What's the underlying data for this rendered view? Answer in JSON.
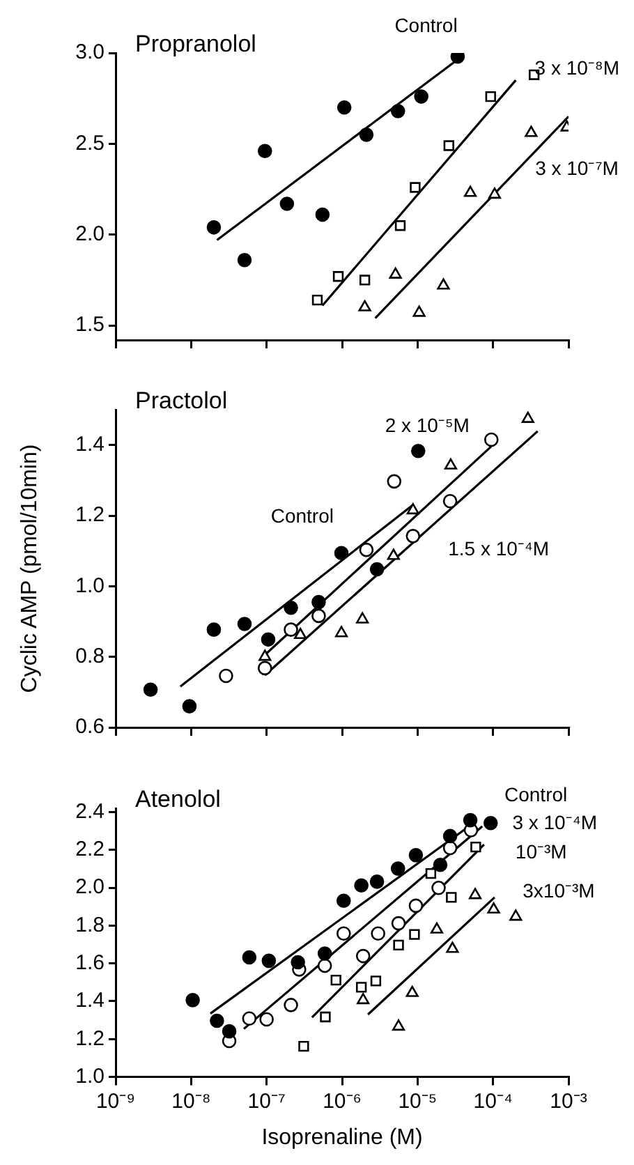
{
  "chart_data": [
    {
      "type": "scatter",
      "title": "Propranolol",
      "log": "x",
      "grid": false,
      "legend": false,
      "tick_labels": "y",
      "xlim": [
        1e-09,
        0.001
      ],
      "xticks": [
        {
          "value": 1e-09,
          "label": null
        },
        {
          "value": 1e-08,
          "label": null
        },
        {
          "value": 1e-07,
          "label": null
        },
        {
          "value": 1e-06,
          "label": null
        },
        {
          "value": 1e-05,
          "label": null
        },
        {
          "value": 0.0001,
          "label": null
        },
        {
          "value": 0.001,
          "label": null
        }
      ],
      "ylim": [
        1.42,
        3.0
      ],
      "yticks": [
        {
          "value": 1.5,
          "label": "1.5"
        },
        {
          "value": 2,
          "label": "2.0"
        },
        {
          "value": 2.5,
          "label": "2.5"
        },
        {
          "value": 3,
          "label": "3.0"
        }
      ],
      "series": [
        {
          "color": "#000000",
          "marker": "circle",
          "x": [
            2e-08,
            5.1e-08,
            9.5e-08,
            1.86e-07,
            5.5e-07,
            1.07e-06,
            2.1e-06,
            5.5e-06,
            1.12e-05,
            3.4e-05
          ],
          "values": [
            2.04,
            1.86,
            2.46,
            2.17,
            2.11,
            2.7,
            2.55,
            2.68,
            2.76,
            2.98
          ]
        },
        {
          "color": "#000000",
          "marker": "square",
          "x": [
            4.7e-07,
            8.9e-07,
            2e-06,
            5.9e-06,
            9.3e-06,
            2.6e-05,
            9.3e-05,
            0.00035
          ],
          "values": [
            1.64,
            1.77,
            1.75,
            2.05,
            2.26,
            2.49,
            2.76,
            2.88
          ]
        },
        {
          "color": "#000000",
          "marker": "triangle",
          "x": [
            2e-06,
            5.1e-06,
            1.05e-05,
            2.2e-05,
            5e-05,
            0.000105,
            0.00032,
            0.00095
          ],
          "values": [
            1.6,
            1.78,
            1.57,
            1.72,
            2.23,
            2.22,
            2.56,
            2.59
          ]
        },
        {
          "type": "line",
          "name": "Control",
          "color": "#000000",
          "marker": "none",
          "x": [
            2.2e-08,
            3.3e-05
          ],
          "values": [
            1.97,
            2.96
          ]
        },
        {
          "type": "line",
          "name": "3 x 10⁻⁸M",
          "color": "#000000",
          "marker": "none",
          "x": [
            5.5e-07,
            0.0002
          ],
          "values": [
            1.61,
            2.85
          ]
        },
        {
          "type": "line",
          "name": "3 x 10⁻⁷M",
          "color": "#000000",
          "marker": "none",
          "x": [
            2.75e-06,
            0.001
          ],
          "values": [
            1.54,
            2.65
          ]
        }
      ]
    },
    {
      "type": "scatter",
      "title": "Practolol",
      "ylabel": "Cyclic AMP (pmol/10min)",
      "log": "x",
      "grid": false,
      "legend": false,
      "tick_labels": "y",
      "xlim": [
        1e-09,
        0.001
      ],
      "xticks": [
        {
          "value": 1e-09,
          "label": null
        },
        {
          "value": 1e-08,
          "label": null
        },
        {
          "value": 1e-07,
          "label": null
        },
        {
          "value": 1e-06,
          "label": null
        },
        {
          "value": 1e-05,
          "label": null
        },
        {
          "value": 0.0001,
          "label": null
        },
        {
          "value": 0.001,
          "label": null
        }
      ],
      "ylim": [
        0.6,
        1.5
      ],
      "yticks": [
        0.6,
        0.8,
        {
          "value": 1,
          "label": "1.0"
        },
        1.2,
        1.4
      ],
      "series": [
        {
          "color": "#000000",
          "marker": "circle",
          "x": [
            2.9e-09,
            9.5e-09,
            2e-08,
            5.1e-08,
            1.05e-07,
            2.1e-07,
            4.9e-07,
            9.8e-07,
            2.9e-06,
            1.02e-05
          ],
          "values": [
            0.707,
            0.66,
            0.877,
            0.893,
            0.849,
            0.939,
            0.955,
            1.094,
            1.048,
            1.383
          ]
        },
        {
          "color": "#000000",
          "marker": "circle",
          "x": [
            2.9e-08,
            9.5e-08,
            2.1e-07,
            4.9e-07,
            2.1e-06,
            4.9e-06,
            8.7e-06,
            2.7e-05,
            9.5e-05
          ],
          "values": [
            0.746,
            0.768,
            0.877,
            0.916,
            1.103,
            1.297,
            1.142,
            1.241,
            1.415
          ]
        },
        {
          "color": "#000000",
          "marker": "triangle",
          "x": [
            9.5e-08,
            2.8e-07,
            9.8e-07,
            1.86e-06,
            4.8e-06,
            8.7e-06,
            2.75e-05,
            0.00029
          ],
          "values": [
            0.8,
            0.862,
            0.867,
            0.906,
            1.086,
            1.215,
            1.342,
            1.474
          ]
        },
        {
          "type": "line",
          "name": "Control",
          "color": "#000000",
          "marker": "none",
          "x": [
            7.2e-09,
            8.9e-06
          ],
          "values": [
            0.716,
            1.232
          ]
        },
        {
          "type": "line",
          "name": "2 x 10⁻⁵M",
          "color": "#000000",
          "marker": "none",
          "x": [
            8.3e-08,
            9.5e-05
          ],
          "values": [
            0.794,
            1.396
          ]
        },
        {
          "type": "line",
          "name": "1.5 x 10⁻⁴M",
          "color": "#000000",
          "marker": "none",
          "x": [
            9.5e-08,
            0.00039
          ],
          "values": [
            0.748,
            1.439
          ]
        }
      ]
    },
    {
      "type": "scatter",
      "title": "Atenolol",
      "xlabel": "Isoprenaline (M)",
      "log": "x",
      "grid": false,
      "legend": false,
      "xlim": [
        1e-09,
        0.001
      ],
      "xticks": [
        {
          "value": 1e-09,
          "label": "10⁻⁹"
        },
        {
          "value": 1e-08,
          "label": "10⁻⁸"
        },
        {
          "value": 1e-07,
          "label": "10⁻⁷"
        },
        {
          "value": 1e-06,
          "label": "10⁻⁶"
        },
        {
          "value": 1e-05,
          "label": "10⁻⁵"
        },
        {
          "value": 0.0001,
          "label": "10⁻⁴"
        },
        {
          "value": 0.001,
          "label": "10⁻³"
        }
      ],
      "ylim": [
        1.0,
        2.42
      ],
      "yticks": [
        {
          "value": 1,
          "label": "1.0"
        },
        1.2,
        1.4,
        1.6,
        1.8,
        {
          "value": 2,
          "label": "2.0"
        },
        2.2,
        2.4
      ],
      "series": [
        {
          "color": "#000000",
          "marker": "circle",
          "x": [
            1.05e-08,
            2.2e-08,
            3.2e-08,
            5.9e-08,
            1.07e-07,
            2.6e-07,
            5.9e-07,
            1.05e-06,
            1.8e-06,
            2.9e-06,
            5.5e-06,
            9.5e-06,
            2e-05,
            2.7e-05,
            5e-05,
            9.3e-05
          ],
          "values": [
            1.406,
            1.297,
            1.241,
            1.632,
            1.614,
            1.606,
            1.652,
            1.931,
            2.012,
            2.032,
            2.101,
            2.172,
            2.121,
            2.273,
            2.357,
            2.342
          ]
        },
        {
          "color": "#000000",
          "marker": "circle",
          "x": [
            3.2e-08,
            5.9e-08,
            1e-07,
            2.1e-07,
            2.7e-07,
            5.9e-07,
            1.05e-06,
            1.9e-06,
            3e-06,
            5.6e-06,
            9.5e-06,
            1.9e-05,
            2.7e-05,
            5.1e-05
          ],
          "values": [
            1.19,
            1.309,
            1.304,
            1.38,
            1.568,
            1.588,
            1.758,
            1.639,
            1.758,
            1.812,
            1.905,
            1.999,
            2.21,
            2.304
          ]
        },
        {
          "color": "#000000",
          "marker": "square",
          "x": [
            3.1e-07,
            6e-07,
            8.3e-07,
            1.8e-06,
            2.8e-06,
            5.6e-06,
            9.1e-06,
            1.5e-05,
            2.8e-05,
            5.9e-05
          ],
          "values": [
            1.162,
            1.317,
            1.512,
            1.474,
            1.507,
            1.697,
            1.753,
            2.075,
            1.949,
            2.215
          ]
        },
        {
          "color": "#000000",
          "marker": "triangle",
          "x": [
            1.9e-06,
            5.6e-06,
            8.5e-06,
            1.8e-05,
            2.9e-05,
            5.8e-05,
            0.000102,
            0.0002
          ],
          "values": [
            1.406,
            1.266,
            1.444,
            1.779,
            1.677,
            1.961,
            1.885,
            1.847
          ]
        },
        {
          "type": "line",
          "name": "Control",
          "color": "#000000",
          "marker": "none",
          "x": [
            1.8e-08,
            4.8e-05
          ],
          "values": [
            1.335,
            2.324
          ]
        },
        {
          "type": "line",
          "name": "3 x 10⁻⁴M",
          "color": "#000000",
          "marker": "none",
          "x": [
            5e-08,
            7.2e-05
          ],
          "values": [
            1.254,
            2.324
          ]
        },
        {
          "type": "line",
          "name": "10⁻³M",
          "color": "#000000",
          "marker": "none",
          "x": [
            4e-07,
            7.6e-05
          ],
          "values": [
            1.315,
            2.228
          ]
        },
        {
          "type": "line",
          "name": "3x10⁻³M",
          "color": "#000000",
          "marker": "none",
          "x": [
            2.2e-06,
            0.000105
          ],
          "values": [
            1.33,
            1.949
          ]
        }
      ]
    }
  ]
}
